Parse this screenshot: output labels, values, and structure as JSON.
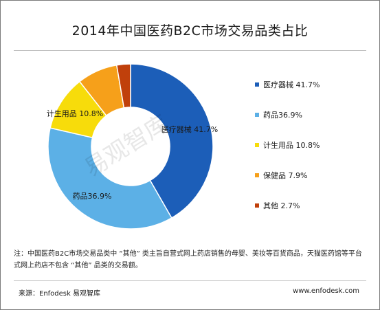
{
  "chart_data": {
    "type": "pie",
    "title": "2014年中国医药B2C市场交易品类占比",
    "categories": [
      "医疗器械",
      "药品",
      "计生用品",
      "保健品",
      "其他"
    ],
    "values": [
      41.7,
      36.9,
      10.8,
      7.9,
      2.7
    ],
    "unit": "%",
    "colors": [
      "#1c5eb8",
      "#5cb0e6",
      "#f7dc0b",
      "#f6a01a",
      "#c0400b"
    ],
    "slice_labels": [
      "医疗器械 41.7%",
      "药品36.9%",
      "计生用品 10.8%",
      "",
      ""
    ],
    "legend": {
      "placement": "right",
      "entries": [
        "医疗器械 41.7%",
        "药品36.9%",
        "计生用品 10.8%",
        "保健品  7.9%",
        "其他  2.7%"
      ]
    },
    "donut": true
  },
  "note": "注：中国医药B2C市场交易品类中 “其他” 类主旨自营式网上药店销售的母婴、美妆等百货商品，天猫医药馆等平台式网上药店不包含 “其他” 品类的交易额。",
  "source": "来源：Enfodesk 易观智库",
  "website": "www.enfodesk.com",
  "watermark": "易观智库"
}
